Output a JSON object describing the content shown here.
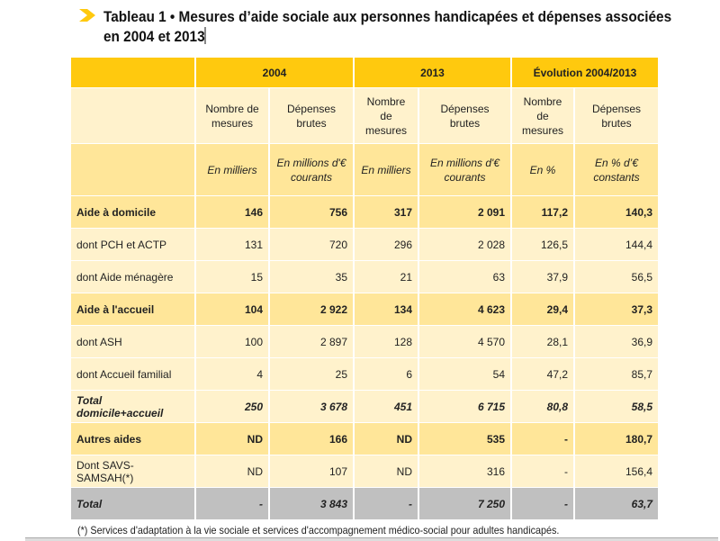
{
  "title": "Tableau 1 • Mesures d’aide sociale aux personnes handicapées et dépenses associées en 2004 et 2013",
  "accent": "#FFC90E",
  "groups": [
    "2004",
    "2013",
    "Évolution 2004/2013"
  ],
  "subheaders": [
    "Nombre de mesures",
    "Dépenses brutes",
    "Nombre de mesures",
    "Dépenses brutes",
    "Nombre de mesures",
    "Dépenses brutes"
  ],
  "units": [
    "En milliers",
    "En millions d'€ courants",
    "En milliers",
    "En millions d'€ courants",
    "En %",
    "En % d’€ constants"
  ],
  "rows": [
    {
      "label": "Aide à domicile",
      "values": [
        "146",
        "756",
        "317",
        "2 091",
        "117,2",
        "140,3"
      ],
      "style": "main"
    },
    {
      "label": "dont PCH et ACTP",
      "values": [
        "131",
        "720",
        "296",
        "2 028",
        "126,5",
        "144,4"
      ],
      "style": "sub"
    },
    {
      "label": "dont Aide ménagère",
      "values": [
        "15",
        "35",
        "21",
        "63",
        "37,9",
        "56,5"
      ],
      "style": "sub"
    },
    {
      "label": "Aide à l'accueil",
      "values": [
        "104",
        "2 922",
        "134",
        "4 623",
        "29,4",
        "37,3"
      ],
      "style": "main"
    },
    {
      "label": "dont ASH",
      "values": [
        "100",
        "2 897",
        "128",
        "4 570",
        "28,1",
        "36,9"
      ],
      "style": "sub"
    },
    {
      "label": "dont Accueil familial",
      "values": [
        "4",
        "25",
        "6",
        "54",
        "47,2",
        "85,7"
      ],
      "style": "sub"
    },
    {
      "label": "Total domicile+accueil",
      "values": [
        "250",
        "3 678",
        "451",
        "6 715",
        "80,8",
        "58,5"
      ],
      "style": "tot"
    },
    {
      "label": "Autres aides",
      "values": [
        "ND",
        "166",
        "ND",
        "535",
        "-",
        "180,7"
      ],
      "style": "main"
    },
    {
      "label": "Dont SAVS-SAMSAH(*)",
      "values": [
        "ND",
        "107",
        "ND",
        "316",
        "-",
        "156,4"
      ],
      "style": "sub"
    },
    {
      "label": "Total",
      "values": [
        "-",
        "3 843",
        "-",
        "7 250",
        "-",
        "63,7"
      ],
      "style": "grand"
    }
  ],
  "footnote": "(*) Services d'adaptation à la vie sociale et services d'accompagnement médico-social pour adultes handicapés."
}
